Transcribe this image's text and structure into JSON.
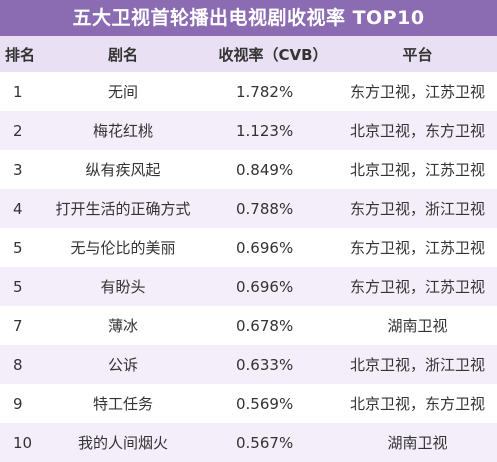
{
  "title": "五大卫视首轮播出电视剧收视率 TOP10",
  "headers": {
    "rank": "排名",
    "name": "剧名",
    "rate": "收视率（CVB）",
    "platform": "平台"
  },
  "rows": [
    {
      "rank": "1",
      "name": "无间",
      "rate": "1.782%",
      "platform": "东方卫视，江苏卫视"
    },
    {
      "rank": "2",
      "name": "梅花红桃",
      "rate": "1.123%",
      "platform": "北京卫视，东方卫视"
    },
    {
      "rank": "3",
      "name": "纵有疾风起",
      "rate": "0.849%",
      "platform": "北京卫视，江苏卫视"
    },
    {
      "rank": "4",
      "name": "打开生活的正确方式",
      "rate": "0.788%",
      "platform": "东方卫视，浙江卫视"
    },
    {
      "rank": "5",
      "name": "无与伦比的美丽",
      "rate": "0.696%",
      "platform": "东方卫视，江苏卫视"
    },
    {
      "rank": "5",
      "name": "有盼头",
      "rate": "0.696%",
      "platform": "东方卫视，江苏卫视"
    },
    {
      "rank": "7",
      "name": "薄冰",
      "rate": "0.678%",
      "platform": "湖南卫视"
    },
    {
      "rank": "8",
      "name": "公诉",
      "rate": "0.633%",
      "platform": "北京卫视，浙江卫视"
    },
    {
      "rank": "9",
      "name": "特工任务",
      "rate": "0.569%",
      "platform": "北京卫视，东方卫视"
    },
    {
      "rank": "10",
      "name": "我的人间烟火",
      "rate": "0.567%",
      "platform": "湖南卫视"
    }
  ],
  "colors": {
    "title_bg": "#8b6bb1",
    "header_bg": "#e9e1f3",
    "stripe_bg": "#f3eef9"
  }
}
